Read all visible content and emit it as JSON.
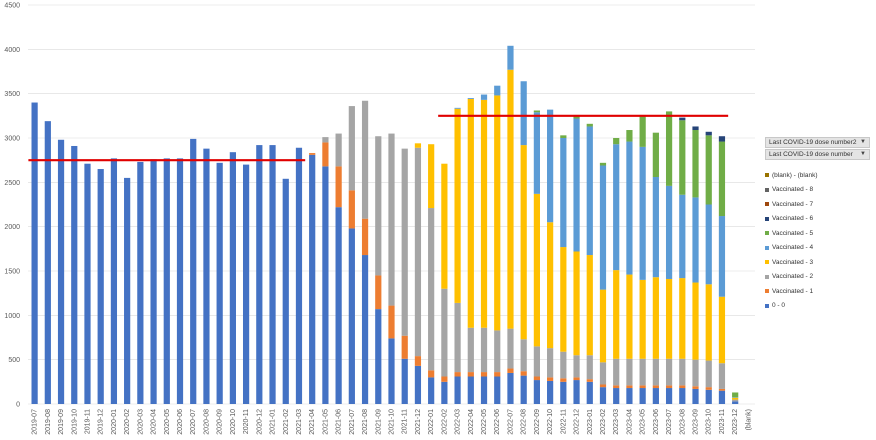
{
  "chart_data": {
    "type": "bar",
    "stacked": true,
    "categories": [
      "2019-07",
      "2019-08",
      "2019-09",
      "2019-10",
      "2019-11",
      "2019-12",
      "2020-01",
      "2020-02",
      "2020-03",
      "2020-04",
      "2020-05",
      "2020-06",
      "2020-07",
      "2020-08",
      "2020-09",
      "2020-10",
      "2020-11",
      "2020-12",
      "2021-01",
      "2021-02",
      "2021-03",
      "2021-04",
      "2021-05",
      "2021-06",
      "2021-07",
      "2021-08",
      "2021-09",
      "2021-10",
      "2021-11",
      "2021-12",
      "2022-01",
      "2022-02",
      "2022-03",
      "2022-04",
      "2022-05",
      "2022-06",
      "2022-07",
      "2022-08",
      "2022-09",
      "2022-10",
      "2022-11",
      "2022-12",
      "2023-01",
      "2023-02",
      "2023-03",
      "2023-04",
      "2023-05",
      "2023-06",
      "2023-07",
      "2023-08",
      "2023-09",
      "2023-10",
      "2023-11",
      "2023-12",
      "(blank)"
    ],
    "ylim": [
      0,
      4500
    ],
    "yticks": [
      0,
      500,
      1000,
      1500,
      2000,
      2500,
      3000,
      3500,
      4000,
      4500
    ],
    "series": [
      {
        "name": "0 - 0",
        "color": "#4472c4",
        "values": [
          3400,
          3190,
          2980,
          2910,
          2710,
          2650,
          2770,
          2550,
          2730,
          2760,
          2770,
          2770,
          2990,
          2880,
          2720,
          2840,
          2700,
          2920,
          2920,
          2540,
          2890,
          2810,
          2680,
          2220,
          1980,
          1680,
          1070,
          740,
          510,
          430,
          300,
          250,
          310,
          310,
          310,
          310,
          350,
          320,
          270,
          260,
          250,
          270,
          250,
          190,
          180,
          180,
          180,
          180,
          180,
          180,
          170,
          160,
          150,
          30,
          0
        ]
      },
      {
        "name": "Vaccinated - 1",
        "color": "#ed7d31",
        "values": [
          0,
          0,
          0,
          0,
          0,
          0,
          0,
          0,
          0,
          0,
          0,
          0,
          0,
          0,
          0,
          0,
          0,
          0,
          0,
          0,
          0,
          20,
          270,
          460,
          430,
          410,
          380,
          370,
          260,
          110,
          80,
          60,
          50,
          50,
          50,
          50,
          50,
          50,
          40,
          40,
          40,
          30,
          30,
          30,
          30,
          30,
          30,
          30,
          30,
          30,
          30,
          30,
          20,
          0,
          0
        ]
      },
      {
        "name": "Vaccinated - 2",
        "color": "#a5a5a5",
        "values": [
          0,
          0,
          0,
          0,
          0,
          0,
          0,
          0,
          0,
          0,
          0,
          0,
          0,
          0,
          0,
          0,
          0,
          0,
          0,
          0,
          0,
          0,
          60,
          370,
          950,
          1330,
          1570,
          1940,
          2110,
          2350,
          1830,
          990,
          780,
          500,
          500,
          470,
          450,
          360,
          340,
          330,
          300,
          250,
          270,
          250,
          300,
          300,
          300,
          300,
          300,
          300,
          300,
          300,
          290,
          20,
          0
        ]
      },
      {
        "name": "Vaccinated - 3",
        "color": "#ffc000",
        "values": [
          0,
          0,
          0,
          0,
          0,
          0,
          0,
          0,
          0,
          0,
          0,
          0,
          0,
          0,
          0,
          0,
          0,
          0,
          0,
          0,
          0,
          0,
          0,
          0,
          0,
          0,
          0,
          0,
          0,
          50,
          720,
          1410,
          2190,
          2580,
          2570,
          2650,
          2920,
          2190,
          1720,
          1420,
          1180,
          1170,
          1130,
          820,
          1000,
          950,
          890,
          920,
          900,
          910,
          870,
          860,
          750,
          20,
          0
        ]
      },
      {
        "name": "Vaccinated - 4",
        "color": "#5b9bd5",
        "values": [
          0,
          0,
          0,
          0,
          0,
          0,
          0,
          0,
          0,
          0,
          0,
          0,
          0,
          0,
          0,
          0,
          0,
          0,
          0,
          0,
          0,
          0,
          0,
          0,
          0,
          0,
          0,
          0,
          0,
          0,
          0,
          0,
          10,
          10,
          60,
          110,
          270,
          720,
          920,
          1270,
          1230,
          1500,
          1450,
          1400,
          1420,
          1500,
          1500,
          1130,
          1050,
          940,
          960,
          900,
          910,
          5,
          0
        ]
      },
      {
        "name": "Vaccinated - 5",
        "color": "#70ad47",
        "values": [
          0,
          0,
          0,
          0,
          0,
          0,
          0,
          0,
          0,
          0,
          0,
          0,
          0,
          0,
          0,
          0,
          0,
          0,
          0,
          0,
          0,
          0,
          0,
          0,
          0,
          0,
          0,
          0,
          0,
          0,
          0,
          0,
          0,
          0,
          0,
          0,
          0,
          0,
          20,
          0,
          30,
          40,
          30,
          30,
          70,
          130,
          360,
          500,
          840,
          840,
          760,
          780,
          840,
          55,
          0
        ]
      },
      {
        "name": "Vaccinated - 6",
        "color": "#264478",
        "values": [
          0,
          0,
          0,
          0,
          0,
          0,
          0,
          0,
          0,
          0,
          0,
          0,
          0,
          0,
          0,
          0,
          0,
          0,
          0,
          0,
          0,
          0,
          0,
          0,
          0,
          0,
          0,
          0,
          0,
          0,
          0,
          0,
          0,
          0,
          0,
          0,
          0,
          0,
          0,
          0,
          0,
          0,
          0,
          0,
          0,
          0,
          0,
          0,
          0,
          30,
          40,
          40,
          60,
          0,
          0
        ]
      },
      {
        "name": "Vaccinated - 7",
        "color": "#9e480e",
        "values": [
          0,
          0,
          0,
          0,
          0,
          0,
          0,
          0,
          0,
          0,
          0,
          0,
          0,
          0,
          0,
          0,
          0,
          0,
          0,
          0,
          0,
          0,
          0,
          0,
          0,
          0,
          0,
          0,
          0,
          0,
          0,
          0,
          0,
          0,
          0,
          0,
          0,
          0,
          0,
          0,
          0,
          0,
          0,
          0,
          0,
          0,
          0,
          0,
          0,
          0,
          0,
          0,
          0,
          0,
          0
        ]
      },
      {
        "name": "Vaccinated - 8",
        "color": "#636363",
        "values": [
          0,
          0,
          0,
          0,
          0,
          0,
          0,
          0,
          0,
          0,
          0,
          0,
          0,
          0,
          0,
          0,
          0,
          0,
          0,
          0,
          0,
          0,
          0,
          0,
          0,
          0,
          0,
          0,
          0,
          0,
          0,
          0,
          0,
          0,
          0,
          0,
          0,
          0,
          0,
          0,
          0,
          0,
          0,
          0,
          0,
          0,
          0,
          0,
          0,
          0,
          0,
          0,
          0,
          0,
          0
        ]
      },
      {
        "name": "(blank) - (blank)",
        "color": "#997300",
        "values": [
          0,
          0,
          0,
          0,
          0,
          0,
          0,
          0,
          0,
          0,
          0,
          0,
          0,
          0,
          0,
          0,
          0,
          0,
          0,
          0,
          0,
          0,
          0,
          0,
          0,
          0,
          0,
          0,
          0,
          0,
          0,
          0,
          0,
          0,
          0,
          0,
          0,
          0,
          0,
          0,
          0,
          0,
          0,
          0,
          0,
          0,
          0,
          0,
          0,
          0,
          0,
          0,
          0,
          0,
          0
        ]
      }
    ],
    "reference_lines": [
      {
        "value": 2750,
        "from": "2019-07",
        "to": "2021-03",
        "color": "#e00000"
      },
      {
        "value": 3250,
        "from": "2022-02",
        "to": "2023-11",
        "color": "#e00000"
      }
    ]
  },
  "panel": {
    "dropdown1": "Last COVID-19 dose number2",
    "dropdown2": "Last COVID-19 dose number",
    "legend": [
      {
        "label": "(blank) - (blank)",
        "color": "#997300"
      },
      {
        "label": "Vaccinated - 8",
        "color": "#636363"
      },
      {
        "label": "Vaccinated - 7",
        "color": "#9e480e"
      },
      {
        "label": "Vaccinated - 6",
        "color": "#264478"
      },
      {
        "label": "Vaccinated - 5",
        "color": "#70ad47"
      },
      {
        "label": "Vaccinated - 4",
        "color": "#5b9bd5"
      },
      {
        "label": "Vaccinated - 3",
        "color": "#ffc000"
      },
      {
        "label": "Vaccinated - 2",
        "color": "#a5a5a5"
      },
      {
        "label": "Vaccinated - 1",
        "color": "#ed7d31"
      },
      {
        "label": "0 - 0",
        "color": "#4472c4"
      }
    ]
  }
}
